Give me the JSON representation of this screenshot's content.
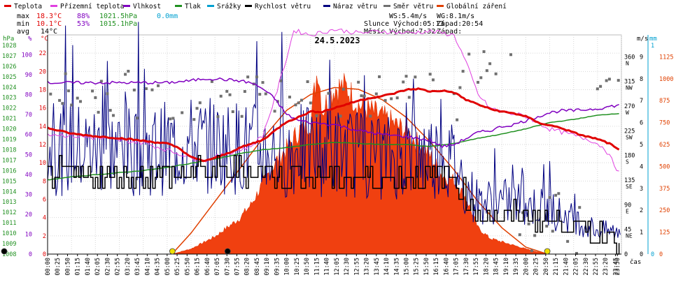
{
  "chart_data": {
    "type": "line",
    "title": "24.5.2023",
    "legend": [
      {
        "label": "Teplota",
        "color": "#e00000"
      },
      {
        "label": "Přízemní teplota",
        "color": "#e040e0"
      },
      {
        "label": "Vlhkost",
        "color": "#8000c0"
      },
      {
        "label": "Tlak",
        "color": "#209020"
      },
      {
        "label": "Srážky",
        "color": "#00a0d0"
      },
      {
        "label": "Rychlost větru",
        "color": "#000000"
      },
      {
        "label": "Náraz větru",
        "color": "#000080"
      },
      {
        "label": "Směr větru",
        "color": "#707070"
      },
      {
        "label": "Globální záření",
        "color": "#e04000"
      }
    ],
    "stats": {
      "max_label": "max",
      "max_temp": "18.3°C",
      "max_hum": "88%",
      "max_press": "1021.5hPa",
      "max_rain": "0.0mm",
      "min_label": "min",
      "min_temp": "10.1°C",
      "min_hum": "53%",
      "min_press": "1015.1hPa",
      "avg_label": "avg",
      "avg_temp": "14°C"
    },
    "wind_info": {
      "ws": "WS:5.4m/s",
      "wg": "WG:8.1m/s",
      "slunce": "Slunce Východ:05:13",
      "slunce_zapad": "Západ:20:54",
      "mesic": "Měsíc  Východ:7:32",
      "mesic_zapad": "Západ:"
    },
    "axis_units": {
      "hpa": "hPa",
      "pct": "%",
      "temp": "°C",
      "ms": "m/s",
      "mm": "mm",
      "time": "čas",
      "wm2": "W/m²"
    },
    "hpa_ticks": [
      1008,
      1009,
      1010,
      1011,
      1012,
      1013,
      1014,
      1015,
      1016,
      1017,
      1018,
      1019,
      1020,
      1021,
      1022,
      1023,
      1024,
      1025,
      1026,
      1027,
      1028
    ],
    "pct_ticks": [
      0,
      10,
      20,
      30,
      40,
      50,
      60,
      70,
      80,
      90,
      100
    ],
    "temp_ticks": [
      0,
      2,
      4,
      6,
      8,
      10,
      12,
      14,
      16,
      18,
      20,
      22
    ],
    "dir_ticks": [
      {
        "v": 0,
        "t": "0"
      },
      {
        "v": 45,
        "t": "45"
      },
      {
        "v": 90,
        "t": "90"
      },
      {
        "v": 135,
        "t": "135"
      },
      {
        "v": 180,
        "t": "180"
      },
      {
        "v": 225,
        "t": "225"
      },
      {
        "v": 270,
        "t": "270"
      },
      {
        "v": 315,
        "t": "315"
      },
      {
        "v": 360,
        "t": "360"
      }
    ],
    "dir_letters": [
      {
        "v": 45,
        "t": "NE"
      },
      {
        "v": 90,
        "t": "E"
      },
      {
        "v": 135,
        "t": "SE"
      },
      {
        "v": 180,
        "t": "S"
      },
      {
        "v": 225,
        "t": "SW"
      },
      {
        "v": 270,
        "t": "W"
      },
      {
        "v": 315,
        "t": "NW"
      },
      {
        "v": 360,
        "t": "N"
      }
    ],
    "ms_ticks": [
      0,
      1,
      2,
      3,
      4,
      5,
      6,
      7,
      8,
      9
    ],
    "mm_ticks": [
      0,
      1
    ],
    "rad_ticks": [
      0,
      125,
      250,
      375,
      500,
      625,
      750,
      875,
      1000,
      1125
    ],
    "time_labels": [
      "00:00",
      "00:25",
      "00:50",
      "01:15",
      "01:40",
      "02:05",
      "02:30",
      "02:55",
      "03:20",
      "03:45",
      "04:10",
      "04:35",
      "05:00",
      "05:25",
      "05:50",
      "06:15",
      "06:40",
      "07:05",
      "07:30",
      "07:55",
      "08:20",
      "08:45",
      "09:10",
      "09:35",
      "10:00",
      "10:25",
      "10:50",
      "11:15",
      "11:40",
      "12:05",
      "12:30",
      "12:55",
      "13:20",
      "13:45",
      "14:10",
      "14:35",
      "15:00",
      "15:25",
      "15:50",
      "16:15",
      "16:40",
      "17:05",
      "17:30",
      "17:55",
      "18:20",
      "18:45",
      "19:10",
      "19:35",
      "20:00",
      "20:25",
      "20:50",
      "21:15",
      "21:40",
      "22:05",
      "22:30",
      "22:55",
      "23:20",
      "23:45",
      "23:50"
    ],
    "x_range_hours": [
      0,
      24
    ],
    "temp_range": [
      0,
      24
    ],
    "pct_range": [
      0,
      110
    ],
    "hpa_range": [
      1008,
      1029
    ],
    "dir_range": [
      0,
      400
    ],
    "ms_range": [
      0,
      10
    ],
    "rad_range": [
      0,
      1250
    ],
    "series": {
      "temperature": [
        [
          0,
          13.8
        ],
        [
          1,
          13.2
        ],
        [
          2,
          12.9
        ],
        [
          3,
          12.7
        ],
        [
          4,
          12.4
        ],
        [
          5,
          12.1
        ],
        [
          5.5,
          11.6
        ],
        [
          6,
          10.6
        ],
        [
          6.5,
          10.2
        ],
        [
          7,
          10.5
        ],
        [
          7.5,
          11.0
        ],
        [
          8,
          11.6
        ],
        [
          9,
          12.5
        ],
        [
          9.5,
          13.5
        ],
        [
          10,
          14.5
        ],
        [
          10.5,
          15.0
        ],
        [
          11,
          15.6
        ],
        [
          11.5,
          15.6
        ],
        [
          12,
          16.0
        ],
        [
          12.5,
          16.4
        ],
        [
          13,
          16.8
        ],
        [
          13.5,
          17.1
        ],
        [
          14,
          17.3
        ],
        [
          14.5,
          17.6
        ],
        [
          15,
          18.0
        ],
        [
          15.5,
          18.1
        ],
        [
          16,
          17.8
        ],
        [
          16.5,
          17.9
        ],
        [
          17,
          17.7
        ],
        [
          17.5,
          16.9
        ],
        [
          18,
          16.4
        ],
        [
          18.5,
          15.9
        ],
        [
          19,
          15.6
        ],
        [
          19.5,
          15.4
        ],
        [
          20,
          15.1
        ],
        [
          20.5,
          14.4
        ],
        [
          21,
          14.1
        ],
        [
          21.5,
          13.8
        ],
        [
          22,
          13.3
        ],
        [
          22.5,
          12.9
        ],
        [
          23,
          12.6
        ],
        [
          23.5,
          12.1
        ],
        [
          24,
          11.2
        ]
      ],
      "ground_temp": [
        [
          0,
          13.2
        ],
        [
          4,
          12.2
        ],
        [
          5.5,
          11.0
        ],
        [
          6.5,
          10.2
        ],
        [
          7.5,
          11.0
        ],
        [
          8.5,
          11.8
        ],
        [
          9,
          13.0
        ],
        [
          9.5,
          17.0
        ],
        [
          10,
          21.5
        ],
        [
          10.3,
          24.5
        ],
        [
          11,
          24.0
        ],
        [
          12,
          24.6
        ],
        [
          13,
          24.2
        ],
        [
          14,
          24.4
        ],
        [
          15,
          24.2
        ],
        [
          16,
          24.4
        ],
        [
          17,
          24.0
        ],
        [
          17.5,
          21.0
        ],
        [
          18,
          17.5
        ],
        [
          18.5,
          16.0
        ],
        [
          19,
          15.6
        ],
        [
          20,
          15.1
        ],
        [
          21,
          13.7
        ],
        [
          22,
          13.0
        ],
        [
          22.7,
          12.5
        ],
        [
          23.3,
          11.6
        ],
        [
          24,
          8.5
        ]
      ],
      "humidity": [
        [
          0,
          86
        ],
        [
          1,
          86
        ],
        [
          2,
          86
        ],
        [
          3,
          86
        ],
        [
          4,
          86
        ],
        [
          5,
          86
        ],
        [
          6,
          87
        ],
        [
          6.5,
          88
        ],
        [
          7,
          88
        ],
        [
          7.5,
          87.5
        ],
        [
          8,
          87
        ],
        [
          8.5,
          86
        ],
        [
          9,
          83
        ],
        [
          9.5,
          78
        ],
        [
          10,
          70
        ],
        [
          10.5,
          67
        ],
        [
          11,
          66
        ],
        [
          12,
          65
        ],
        [
          13,
          62
        ],
        [
          14,
          60
        ],
        [
          15,
          59
        ],
        [
          16,
          57
        ],
        [
          16.5,
          54
        ],
        [
          17,
          55
        ],
        [
          17.5,
          58
        ],
        [
          18,
          61
        ],
        [
          18.5,
          62
        ],
        [
          19,
          64
        ],
        [
          19.5,
          65
        ],
        [
          20,
          67
        ],
        [
          20.5,
          69
        ],
        [
          21,
          71
        ],
        [
          21.5,
          72
        ],
        [
          22,
          72
        ],
        [
          23,
          73
        ],
        [
          24,
          75
        ]
      ],
      "pressure": [
        [
          0,
          1015.1
        ],
        [
          1,
          1015.4
        ],
        [
          2,
          1015.6
        ],
        [
          3,
          1015.8
        ],
        [
          4,
          1016.0
        ],
        [
          5,
          1016.3
        ],
        [
          6,
          1016.7
        ],
        [
          7,
          1017.1
        ],
        [
          8,
          1017.6
        ],
        [
          9,
          1018.0
        ],
        [
          10,
          1018.2
        ],
        [
          11,
          1018.5
        ],
        [
          12,
          1018.7
        ],
        [
          13,
          1018.6
        ],
        [
          14,
          1018.5
        ],
        [
          15,
          1018.5
        ],
        [
          16,
          1018.3
        ],
        [
          17,
          1018.6
        ],
        [
          18,
          1019.1
        ],
        [
          19,
          1019.5
        ],
        [
          20,
          1020.0
        ],
        [
          21,
          1020.6
        ],
        [
          22,
          1020.9
        ],
        [
          23,
          1021.3
        ],
        [
          24,
          1021.5
        ]
      ],
      "wind_speed_mean": [
        [
          0,
          3.7
        ],
        [
          2,
          3.6
        ],
        [
          4,
          3.5
        ],
        [
          6,
          3.7
        ],
        [
          8,
          3.8
        ],
        [
          10,
          3.6
        ],
        [
          12,
          3.5
        ],
        [
          14,
          3.4
        ],
        [
          16,
          3.6
        ],
        [
          17,
          3.5
        ],
        [
          17.5,
          2.5
        ],
        [
          18,
          1.8
        ],
        [
          19,
          1.8
        ],
        [
          20,
          1.8
        ],
        [
          21,
          1.6
        ],
        [
          22,
          1.2
        ],
        [
          23,
          0.9
        ],
        [
          24,
          0.8
        ]
      ],
      "wind_gust_mean": [
        [
          0,
          4.8
        ],
        [
          2,
          4.8
        ],
        [
          4,
          4.7
        ],
        [
          6,
          5.0
        ],
        [
          8,
          4.9
        ],
        [
          10,
          4.6
        ],
        [
          12,
          4.7
        ],
        [
          14,
          4.4
        ],
        [
          16,
          4.6
        ],
        [
          17,
          4.2
        ],
        [
          17.5,
          3.0
        ],
        [
          18,
          2.4
        ],
        [
          19,
          2.4
        ],
        [
          20,
          2.3
        ],
        [
          21,
          2.0
        ],
        [
          22,
          1.6
        ],
        [
          23,
          1.1
        ],
        [
          24,
          1.0
        ]
      ],
      "radiation": [
        [
          0,
          0
        ],
        [
          5.2,
          0
        ],
        [
          6,
          30
        ],
        [
          7,
          100
        ],
        [
          7.5,
          150
        ],
        [
          8,
          200
        ],
        [
          8.5,
          280
        ],
        [
          9,
          400
        ],
        [
          9.5,
          520
        ],
        [
          10,
          600
        ],
        [
          10.5,
          700
        ],
        [
          11,
          760
        ],
        [
          11.3,
          1070
        ],
        [
          11.5,
          820
        ],
        [
          12,
          950
        ],
        [
          12.5,
          950
        ],
        [
          13,
          850
        ],
        [
          14,
          780
        ],
        [
          15,
          700
        ],
        [
          16,
          560
        ],
        [
          16.5,
          450
        ],
        [
          17,
          420
        ],
        [
          17.5,
          320
        ],
        [
          18,
          150
        ],
        [
          18.5,
          90
        ],
        [
          19,
          70
        ],
        [
          19.5,
          50
        ],
        [
          20,
          30
        ],
        [
          20.9,
          0
        ],
        [
          24,
          0
        ]
      ],
      "radiation_clear_sky": [
        [
          5.2,
          0
        ],
        [
          6,
          120
        ],
        [
          7,
          300
        ],
        [
          8,
          480
        ],
        [
          9,
          660
        ],
        [
          10,
          820
        ],
        [
          11,
          910
        ],
        [
          12,
          950
        ],
        [
          13,
          940
        ],
        [
          14,
          880
        ],
        [
          15,
          780
        ],
        [
          16,
          640
        ],
        [
          17,
          480
        ],
        [
          18,
          300
        ],
        [
          19,
          150
        ],
        [
          20,
          40
        ],
        [
          20.9,
          0
        ]
      ]
    },
    "markers": [
      {
        "label": "sunrise",
        "x": 5.22,
        "color": "#f0e000"
      },
      {
        "label": "sunset",
        "x": 20.9,
        "color": "#f0e000"
      },
      {
        "label": "moonrise",
        "x": 7.53,
        "color": "#000000"
      },
      {
        "label": "midnight",
        "x": 0,
        "color": "#000000"
      }
    ]
  }
}
